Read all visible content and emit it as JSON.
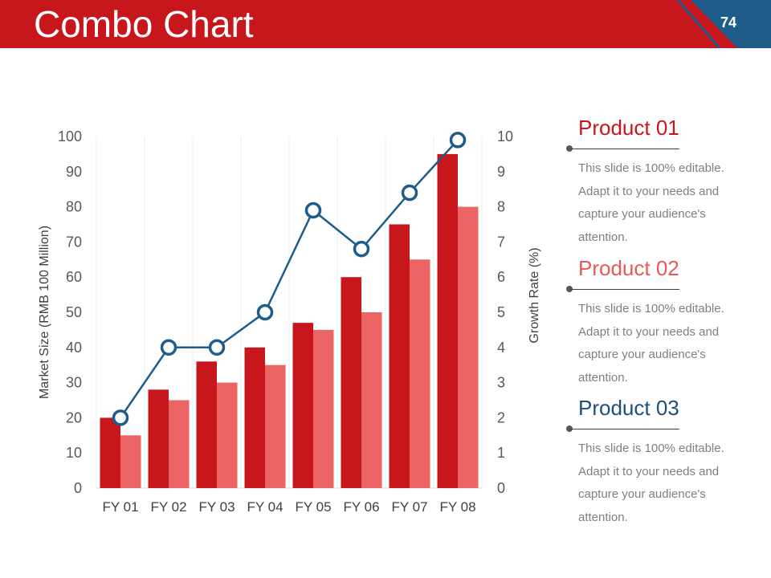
{
  "slide": {
    "title": "Combo Chart",
    "page_number": "74",
    "header_color": "#c8161d",
    "accent_blue": "#1f5c8a"
  },
  "products": [
    {
      "title": "Product 01",
      "color": "#c8161d",
      "description": "This slide is 100% editable. Adapt it to your needs and capture your audience's attention."
    },
    {
      "title": "Product 02",
      "color": "#e85959",
      "description": "This slide is 100% editable. Adapt it to your needs and capture your audience's attention."
    },
    {
      "title": "Product 03",
      "color": "#1f4e79",
      "description": "This slide is 100% editable. Adapt it to your needs and capture your audience's attention."
    }
  ],
  "chart_data": {
    "type": "bar",
    "categories": [
      "FY 01",
      "FY 02",
      "FY 03",
      "FY 04",
      "FY 05",
      "FY 06",
      "FY 07",
      "FY 08"
    ],
    "series": [
      {
        "values": [
          20,
          28,
          36,
          40,
          47,
          60,
          75,
          95
        ],
        "type": "bar",
        "axis": "left",
        "color": "#c8161d"
      },
      {
        "values": [
          15,
          25,
          30,
          35,
          45,
          50,
          65,
          80
        ],
        "type": "bar",
        "axis": "left",
        "color": "#ed6464"
      },
      {
        "values": [
          2,
          4,
          4,
          5,
          7.9,
          6.8,
          8.4,
          9.9
        ],
        "type": "line",
        "axis": "right",
        "color": "#1f5c8a"
      }
    ],
    "ylabel": "Market Size (RMB 100 Million)",
    "y2label": "Growth Rate (%)",
    "ylim": [
      0,
      100
    ],
    "y2lim": [
      0,
      10
    ],
    "yticks": [
      0,
      10,
      20,
      30,
      40,
      50,
      60,
      70,
      80,
      90,
      100
    ],
    "y2ticks": [
      0,
      1,
      2,
      3,
      4,
      5,
      6,
      7,
      8,
      9,
      10
    ],
    "grid": "vertical category dividers",
    "legend": "none"
  }
}
